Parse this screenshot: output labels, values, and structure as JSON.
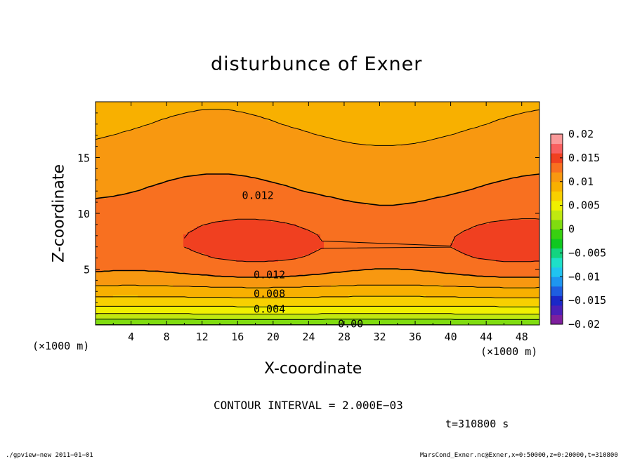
{
  "chart_data": {
    "type": "heatmap",
    "title": "disturbunce of Exner",
    "xlabel": "X-coordinate",
    "ylabel": "Z-coordinate",
    "x_unit": "(×1000 m)",
    "y_unit": "(×1000 m)",
    "xlim": [
      0,
      50
    ],
    "ylim": [
      0,
      20
    ],
    "x_ticks": [
      "4",
      "8",
      "12",
      "16",
      "20",
      "24",
      "28",
      "32",
      "36",
      "40",
      "44",
      "48"
    ],
    "y_ticks": [
      "5",
      "10",
      "15"
    ],
    "colorbar_ticks": [
      "0.02",
      "0.015",
      "0.01",
      "0.005",
      "0",
      "−0.005",
      "−0.01",
      "−0.015",
      "−0.02"
    ],
    "colorbar_range": [
      -0.02,
      0.02
    ],
    "colorbar_levels": 20,
    "contour_interval": "CONTOUR INTERVAL = 2.000E−03",
    "contour_labels": [
      {
        "text": "0.012",
        "x": 16.5,
        "z": 11.6
      },
      {
        "text": "0.012",
        "x": 17.8,
        "z": 4.5
      },
      {
        "text": "0.008",
        "x": 17.8,
        "z": 2.8
      },
      {
        "text": "0.004",
        "x": 17.8,
        "z": 1.4
      },
      {
        "text": "0.00",
        "x": 27.3,
        "z": 0.1
      }
    ],
    "field_profile_z": [
      0,
      1,
      2,
      3,
      4,
      5,
      6,
      7,
      8,
      9,
      10,
      12,
      14,
      16,
      18,
      20
    ],
    "field_profile_value": [
      0.0,
      0.004,
      0.007,
      0.009,
      0.0112,
      0.0126,
      0.0136,
      0.0141,
      0.014,
      0.0136,
      0.013,
      0.012,
      0.0113,
      0.0106,
      0.0098,
      0.0092
    ],
    "time_label": "t=310800 s"
  },
  "footer": {
    "left": "./gpview−new  2011−01−01",
    "right": "MarsCond_Exner.nc@Exner,x=0:50000,z=0:20000,t=310800"
  },
  "colors": {
    "scale": [
      "#7e1f9e",
      "#4a1fb8",
      "#1a28c8",
      "#1e5ee0",
      "#1e96f0",
      "#20c4f0",
      "#1ee0c8",
      "#14d480",
      "#10c820",
      "#38d010",
      "#80dc10",
      "#c0e810",
      "#f0f000",
      "#f8d000",
      "#f8b000",
      "#f89810",
      "#f87020",
      "#f04020",
      "#f86060",
      "#fa9a9a"
    ]
  }
}
